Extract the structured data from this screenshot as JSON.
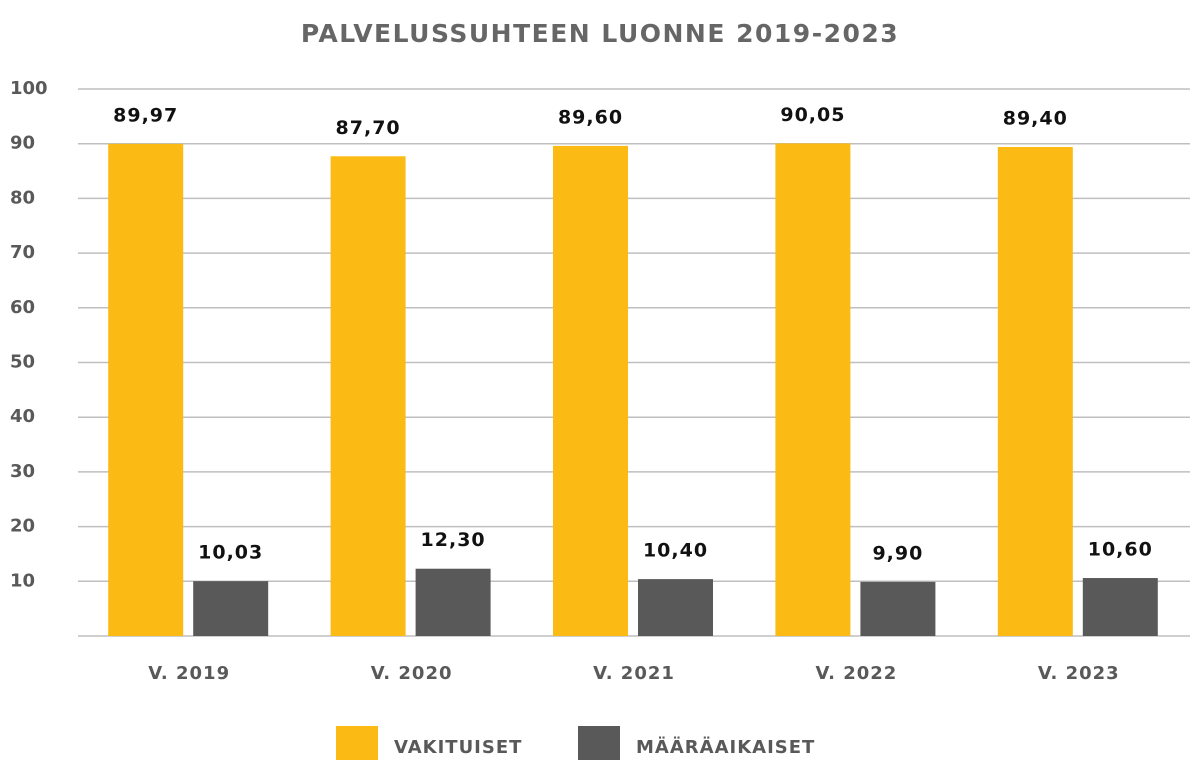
{
  "chart_data": {
    "type": "bar",
    "title": "PALVELUSSUHTEEN LUONNE 2019-2023",
    "categories": [
      "V. 2019",
      "V. 2020",
      "V. 2021",
      "V. 2022",
      "V. 2023"
    ],
    "series": [
      {
        "name": "VAKITUISET",
        "color": "#fbba14",
        "values": [
          89.97,
          87.7,
          89.6,
          90.05,
          89.4
        ],
        "value_labels": [
          "89,97",
          "87,70",
          "89,60",
          "90,05",
          "89,40"
        ]
      },
      {
        "name": "MÄÄRÄAIKAISET",
        "color": "#595959",
        "values": [
          10.03,
          12.3,
          10.4,
          9.9,
          10.6
        ],
        "value_labels": [
          "10,03",
          "12,30",
          "10,40",
          "9,90",
          "10,60"
        ]
      }
    ],
    "ylim": [
      0,
      100
    ],
    "yticks": [
      10,
      20,
      30,
      40,
      50,
      60,
      70,
      80,
      90,
      100
    ],
    "grid": true,
    "legend": "bottom"
  }
}
